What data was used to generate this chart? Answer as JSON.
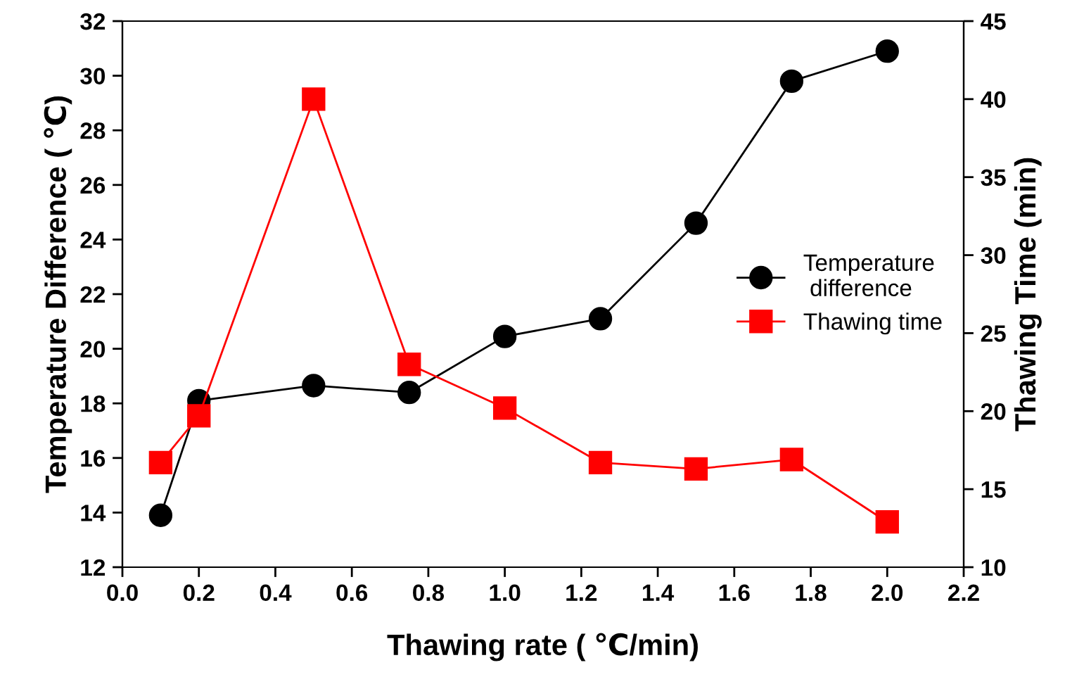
{
  "chart_data": {
    "type": "line",
    "xlabel": "Thawing rate ( ℃/min)",
    "ylabel": "Temperature Difference ( ℃)",
    "y2label": "Thawing Time (min)",
    "x": [
      0.1,
      0.2,
      0.5,
      0.75,
      1.0,
      1.25,
      1.5,
      1.75,
      2.0
    ],
    "series": [
      {
        "name": "Temperature\n difference",
        "color": "#000000",
        "marker": "circle",
        "values": [
          13.9,
          18.1,
          18.65,
          18.4,
          20.45,
          21.1,
          24.6,
          29.8,
          30.9
        ]
      },
      {
        "name": "Thawing time",
        "color": "#ff0000",
        "marker": "square",
        "axis": "y2",
        "values": [
          16.7,
          19.7,
          40.0,
          23.0,
          20.2,
          16.7,
          16.3,
          16.9,
          12.9
        ]
      }
    ],
    "xlim": [
      0.0,
      2.2
    ],
    "xticks": [
      {
        "value": 0.0,
        "label": "0.0"
      },
      {
        "value": 0.2,
        "label": "0.2"
      },
      {
        "value": 0.4,
        "label": "0.4"
      },
      {
        "value": 0.6,
        "label": "0.6"
      },
      {
        "value": 0.8,
        "label": "0.8"
      },
      {
        "value": 1.0,
        "label": "1.0"
      },
      {
        "value": 1.2,
        "label": "1.2"
      },
      {
        "value": 1.4,
        "label": "1.4"
      },
      {
        "value": 1.6,
        "label": "1.6"
      },
      {
        "value": 1.8,
        "label": "1.8"
      },
      {
        "value": 2.0,
        "label": "2.0"
      },
      {
        "value": 2.2,
        "label": "2.2"
      }
    ],
    "ylim": [
      12,
      32
    ],
    "yticks": [
      12,
      14,
      16,
      18,
      20,
      22,
      24,
      26,
      28,
      30,
      32
    ],
    "y2lim": [
      10,
      45
    ],
    "y2ticks": [
      10,
      15,
      20,
      25,
      30,
      35,
      40,
      45
    ],
    "grid": false,
    "legend": "center right",
    "line_style": "solid"
  }
}
